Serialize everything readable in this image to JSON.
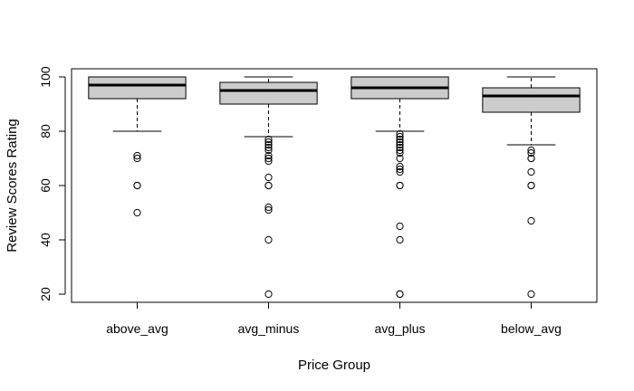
{
  "chart_data": {
    "type": "boxplot",
    "title": "",
    "xlabel": "Price Group",
    "ylabel": "Review Scores Rating",
    "ylim": [
      17,
      103
    ],
    "yticks": [
      20,
      40,
      60,
      80,
      100
    ],
    "grid": false,
    "legend": "none",
    "box_fill": "#cccccc",
    "groups": [
      {
        "name": "above_avg",
        "whisker_low": 80,
        "q1": 92,
        "median": 97,
        "q3": 100,
        "whisker_high": 100,
        "outliers": [
          71,
          70,
          60,
          60,
          50
        ]
      },
      {
        "name": "avg_minus",
        "whisker_low": 78,
        "q1": 90,
        "median": 95,
        "q3": 98,
        "whisker_high": 100,
        "outliers": [
          77,
          76,
          75,
          74,
          73,
          71,
          70,
          69,
          63,
          60,
          60,
          52,
          51,
          40,
          20
        ]
      },
      {
        "name": "avg_plus",
        "whisker_low": 80,
        "q1": 92,
        "median": 96,
        "q3": 100,
        "whisker_high": 100,
        "outliers": [
          79,
          78,
          77,
          76,
          75,
          74,
          73,
          72,
          70,
          67,
          66,
          65,
          60,
          60,
          45,
          40,
          20,
          20
        ]
      },
      {
        "name": "below_avg",
        "whisker_low": 75,
        "q1": 87,
        "median": 93,
        "q3": 96,
        "whisker_high": 100,
        "outliers": [
          73,
          72,
          70,
          70,
          65,
          60,
          60,
          47,
          20
        ]
      }
    ]
  }
}
